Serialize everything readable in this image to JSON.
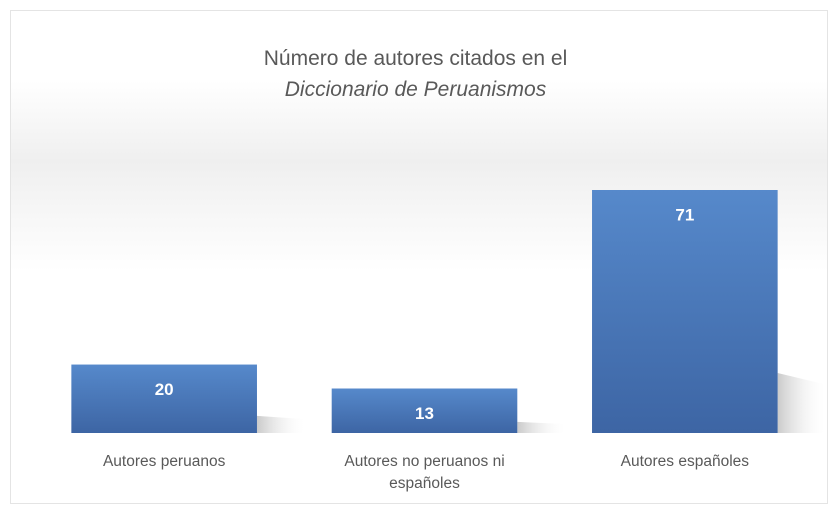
{
  "chart_data": {
    "type": "bar",
    "title": "Número de autores citados en el",
    "subtitle": "Diccionario de Peruanismos",
    "categories": [
      "Autores peruanos",
      "Autores no peruanos ni españoles",
      "Autores españoles"
    ],
    "values": [
      20,
      13,
      71
    ],
    "color": "#4a78b8"
  }
}
